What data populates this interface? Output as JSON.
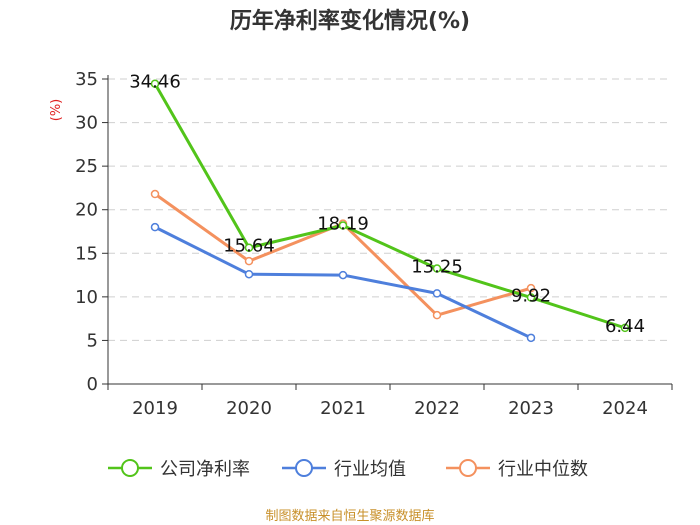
{
  "chart_data": {
    "type": "line",
    "title": "历年净利率变化情况(%)",
    "ylabel": "(%)",
    "categories": [
      "2019",
      "2020",
      "2021",
      "2022",
      "2023",
      "2024"
    ],
    "ylim": [
      0,
      35
    ],
    "yticks": [
      0,
      5,
      10,
      15,
      20,
      25,
      30,
      35
    ],
    "grid": true,
    "legend_position": "bottom",
    "series": [
      {
        "name": "公司净利率",
        "color": "#52c41a",
        "values": [
          34.46,
          15.64,
          18.19,
          13.25,
          9.92,
          6.44
        ],
        "labeled": true
      },
      {
        "name": "行业均值",
        "color": "#4e7fdc",
        "values": [
          18.0,
          12.6,
          12.5,
          10.4,
          5.3,
          null
        ],
        "labeled": false
      },
      {
        "name": "行业中位数",
        "color": "#f4915e",
        "values": [
          21.8,
          14.1,
          18.4,
          7.9,
          11.0,
          null
        ],
        "labeled": false
      }
    ]
  },
  "source": "制图数据来自恒生聚源数据库"
}
